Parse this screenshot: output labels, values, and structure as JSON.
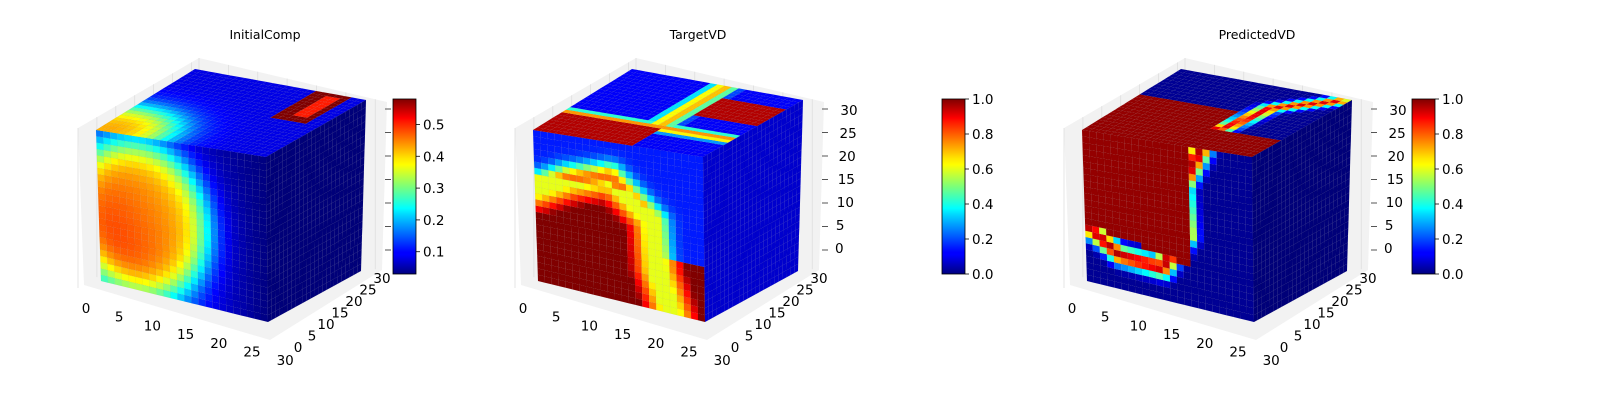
{
  "chart_data": [
    {
      "type": "heatmap",
      "subtype": "3d-voxel-cube",
      "title": "InitialComp",
      "x_ticks": [
        "0",
        "5",
        "10",
        "15",
        "20",
        "25",
        "30"
      ],
      "y_ticks": [
        "0",
        "5",
        "10",
        "15",
        "20",
        "25",
        "30"
      ],
      "z_ticks": [],
      "xlim": [
        0,
        32
      ],
      "ylim": [
        0,
        32
      ],
      "zlim": [
        0,
        32
      ],
      "colormap": "jet",
      "colorbar": {
        "range": [
          0.03,
          0.58
        ],
        "ticks": [
          "0.1",
          "0.2",
          "0.3",
          "0.4",
          "0.5"
        ]
      },
      "field": "initial-composition"
    },
    {
      "type": "heatmap",
      "subtype": "3d-voxel-cube",
      "title": "TargetVD",
      "x_ticks": [
        "0",
        "5",
        "10",
        "15",
        "20",
        "25",
        "30"
      ],
      "y_ticks": [
        "0",
        "5",
        "10",
        "15",
        "20",
        "25",
        "30"
      ],
      "z_ticks": [
        "0",
        "5",
        "10",
        "15",
        "20",
        "25",
        "30"
      ],
      "xlim": [
        0,
        32
      ],
      "ylim": [
        0,
        32
      ],
      "zlim": [
        0,
        32
      ],
      "colormap": "jet",
      "colorbar": {
        "range": [
          0.0,
          1.0
        ],
        "ticks": [
          "0.0",
          "0.2",
          "0.4",
          "0.6",
          "0.8",
          "1.0"
        ]
      },
      "field": "target"
    },
    {
      "type": "heatmap",
      "subtype": "3d-voxel-cube",
      "title": "PredictedVD",
      "x_ticks": [
        "0",
        "5",
        "10",
        "15",
        "20",
        "25",
        "30"
      ],
      "y_ticks": [
        "0",
        "5",
        "10",
        "15",
        "20",
        "25",
        "30"
      ],
      "z_ticks": [
        "0",
        "5",
        "10",
        "15",
        "20",
        "25",
        "30"
      ],
      "xlim": [
        0,
        32
      ],
      "ylim": [
        0,
        32
      ],
      "zlim": [
        0,
        32
      ],
      "colormap": "jet",
      "colorbar": {
        "range": [
          0.0,
          1.0
        ],
        "ticks": [
          "0.0",
          "0.2",
          "0.4",
          "0.6",
          "0.8",
          "1.0"
        ]
      },
      "field": "predicted"
    }
  ]
}
